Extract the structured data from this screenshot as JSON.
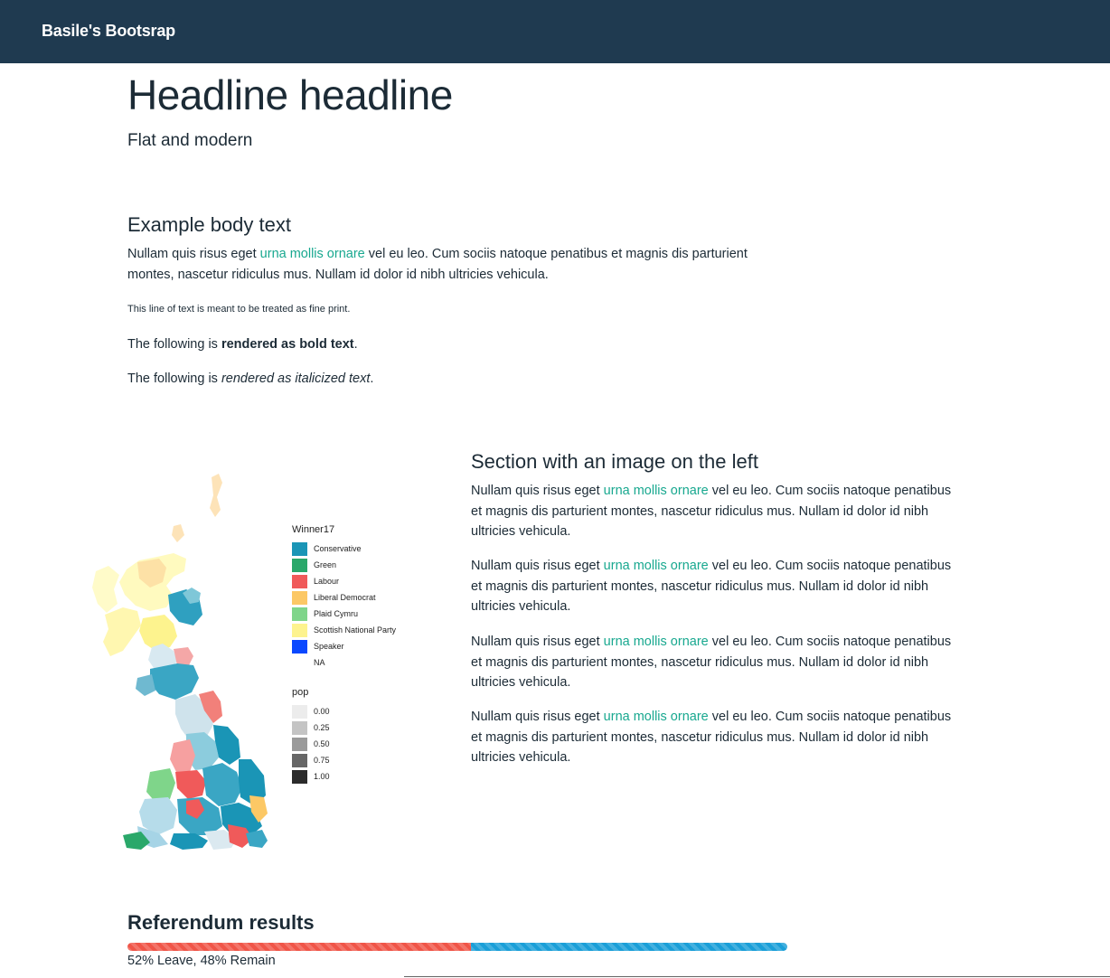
{
  "navbar": {
    "brand": "Basile's Bootsrap"
  },
  "header": {
    "title": "Headline headline",
    "subtitle": "Flat and modern"
  },
  "body_section": {
    "heading": "Example body text",
    "para_before_link": "Nullam quis risus eget ",
    "link": "urna mollis ornare",
    "para_after_link_line1": " vel eu leo. Cum sociis natoque penatibus et magnis dis parturient",
    "para_line2": "montes, nascetur ridiculus mus. Nullam id dolor id nibh ultricies vehicula.",
    "fine_print": "This line of text is meant to be treated as fine print.",
    "bold_prefix": "The following is ",
    "bold_text": "rendered as bold text",
    "italic_prefix": "The following is ",
    "italic_text": "rendered as italicized text",
    "period": "."
  },
  "image_section": {
    "heading": "Section with an image on the left",
    "paragraphs": [
      {
        "before": "Nullam quis risus eget ",
        "link": "urna mollis ornare",
        "l1": " vel eu leo. Cum sociis natoque penatibus",
        "l2": "et magnis dis parturient montes, nascetur ridiculus mus. Nullam id dolor id nibh",
        "l3": "ultricies vehicula."
      },
      {
        "before": "Nullam quis risus eget ",
        "link": "urna mollis ornare",
        "l1": " vel eu leo. Cum sociis natoque penatibus",
        "l2": "et magnis dis parturient montes, nascetur ridiculus mus. Nullam id dolor id nibh",
        "l3": "ultricies vehicula."
      },
      {
        "before": "Nullam quis risus eget ",
        "link": "urna mollis ornare",
        "l1": " vel eu leo. Cum sociis natoque penatibus",
        "l2": "et magnis dis parturient montes, nascetur ridiculus mus. Nullam id dolor id nibh",
        "l3": "ultricies vehicula."
      },
      {
        "before": "Nullam quis risus eget ",
        "link": "urna mollis ornare",
        "l1": " vel eu leo. Cum sociis natoque penatibus",
        "l2": "et magnis dis parturient montes, nascetur ridiculus mus. Nullam id dolor id nibh",
        "l3": "ultricies vehicula."
      }
    ]
  },
  "map_legend": {
    "title": "Winner17",
    "items": [
      {
        "label": "Conservative",
        "color": "#1a95b6"
      },
      {
        "label": "Green",
        "color": "#2aa86a"
      },
      {
        "label": "Labour",
        "color": "#f05a5a"
      },
      {
        "label": "Liberal Democrat",
        "color": "#fcc865"
      },
      {
        "label": "Plaid Cymru",
        "color": "#7fd58a"
      },
      {
        "label": "Scottish National Party",
        "color": "#fdf38e"
      },
      {
        "label": "Speaker",
        "color": "#0a48ff"
      },
      {
        "label": "NA",
        "color": "#ffffff"
      }
    ],
    "pop_title": "pop",
    "pop_items": [
      {
        "label": "0.00",
        "color": "#ececec"
      },
      {
        "label": "0.25",
        "color": "#c4c4c4"
      },
      {
        "label": "0.50",
        "color": "#9a9a9a"
      },
      {
        "label": "0.75",
        "color": "#666666"
      },
      {
        "label": "1.00",
        "color": "#2b2b2b"
      }
    ]
  },
  "referendum": {
    "title": "Referendum results",
    "leave_fraction": 0.52,
    "remain_fraction": 0.48,
    "leave_color": "#f05548",
    "remain_color": "#1a9fd8",
    "caption": "52% Leave, 48% Remain"
  }
}
